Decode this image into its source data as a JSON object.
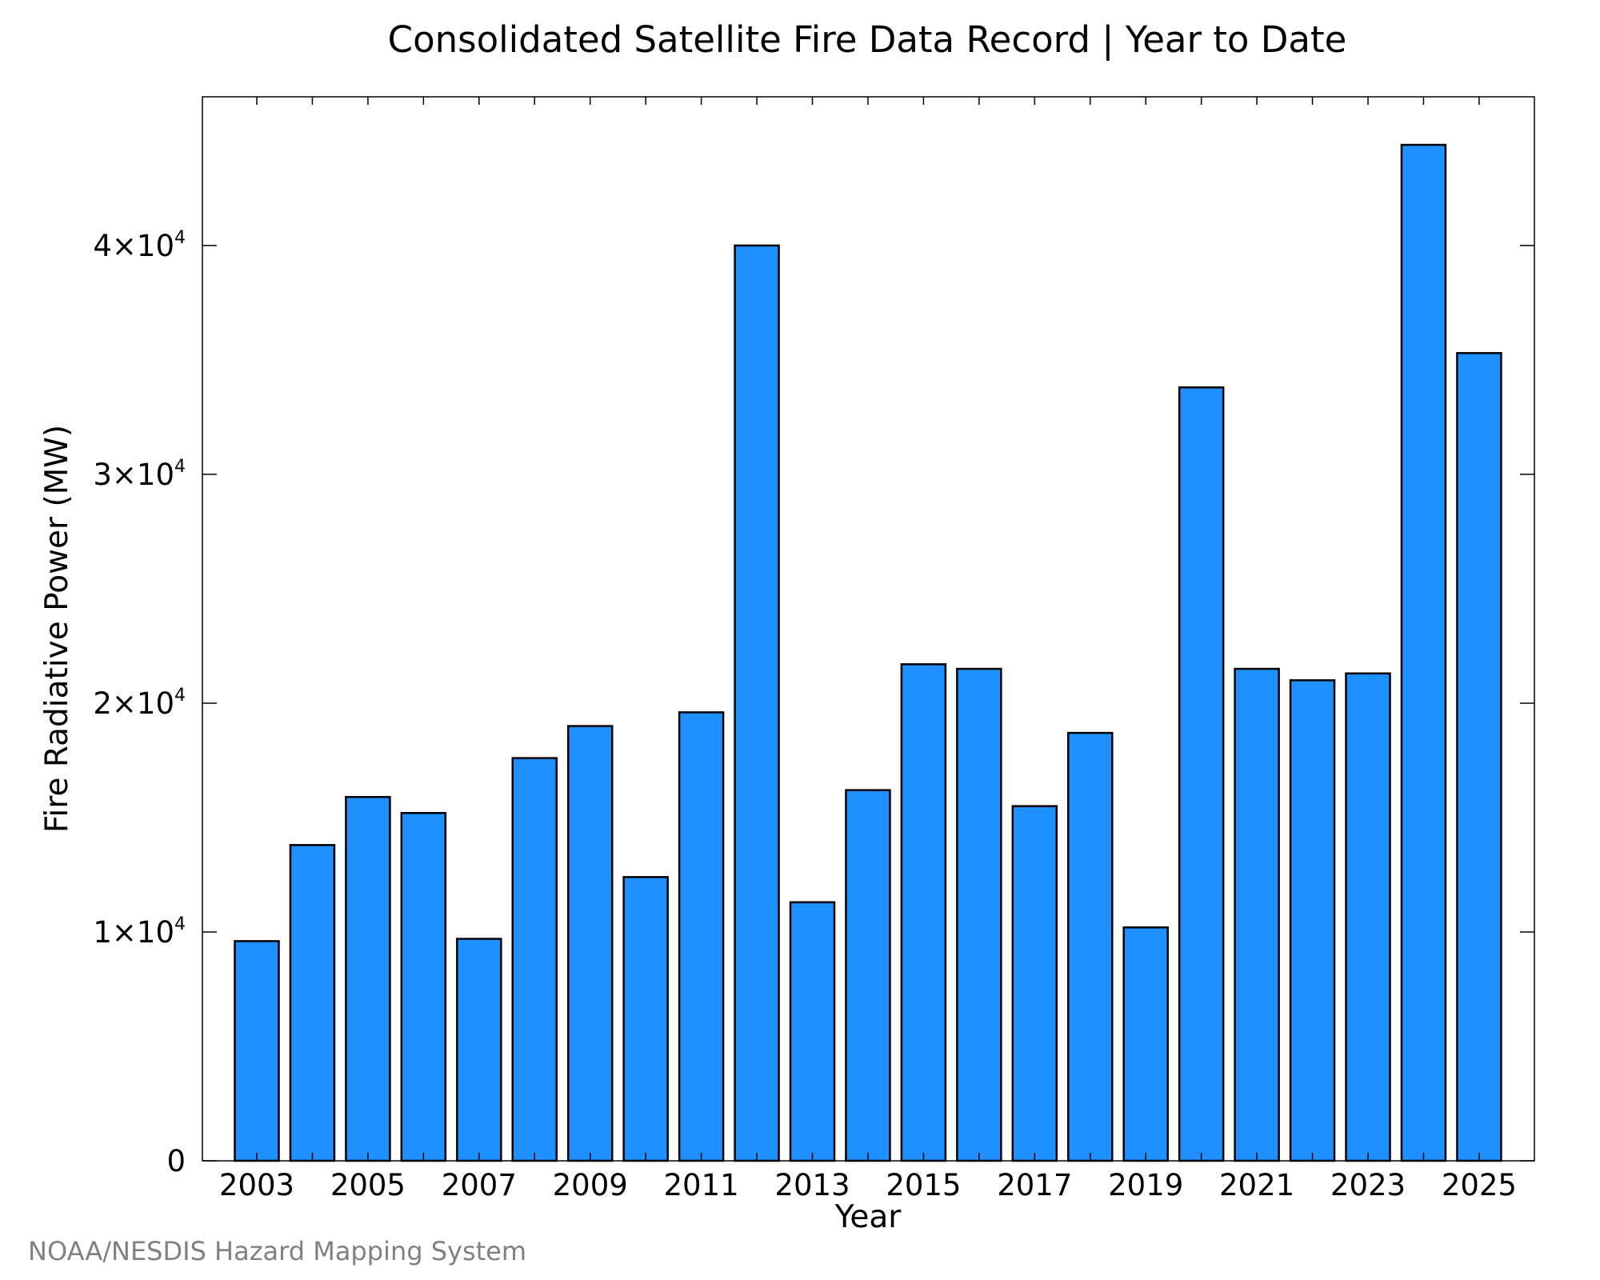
{
  "chart_data": {
    "type": "bar",
    "title": "Consolidated Satellite Fire Data Record | Year to Date",
    "xlabel": "Year",
    "ylabel": "Fire Radiative Power (MW)",
    "categories": [
      "2003",
      "2004",
      "2005",
      "2006",
      "2007",
      "2008",
      "2009",
      "2010",
      "2011",
      "2012",
      "2013",
      "2014",
      "2015",
      "2016",
      "2017",
      "2018",
      "2019",
      "2020",
      "2021",
      "2022",
      "2023",
      "2024",
      "2025"
    ],
    "values": [
      9600,
      13800,
      15900,
      15200,
      9700,
      17600,
      19000,
      12400,
      19600,
      40000,
      11300,
      16200,
      21700,
      21500,
      15500,
      18700,
      10200,
      33800,
      21500,
      21000,
      21300,
      44400,
      35300
    ],
    "x_tick_labels": [
      "2003",
      "2005",
      "2007",
      "2009",
      "2011",
      "2013",
      "2015",
      "2017",
      "2019",
      "2021",
      "2023",
      "2025"
    ],
    "y_ticks": [
      {
        "value": 0,
        "mantissa": "0",
        "exponent": ""
      },
      {
        "value": 10000,
        "mantissa": "1×10",
        "exponent": "4"
      },
      {
        "value": 20000,
        "mantissa": "2×10",
        "exponent": "4"
      },
      {
        "value": 30000,
        "mantissa": "3×10",
        "exponent": "4"
      },
      {
        "value": 40000,
        "mantissa": "4×10",
        "exponent": "4"
      }
    ],
    "ylim": [
      0,
      46500
    ],
    "bar_color": "#1e90ff",
    "bar_edge_color": "#000000",
    "grid": false,
    "legend": "none"
  },
  "credit": "NOAA/NESDIS Hazard Mapping System"
}
